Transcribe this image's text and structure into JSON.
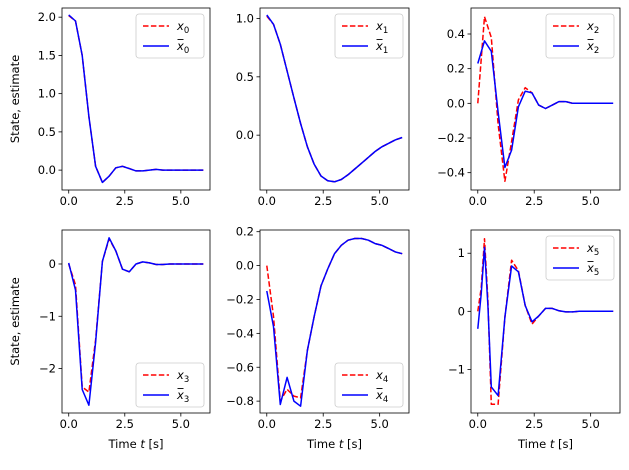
{
  "chart_data": [
    {
      "type": "line",
      "ylabel": "State, estimate",
      "xlabel": "",
      "xlim": [
        -0.3,
        6.3
      ],
      "ylim": [
        -0.26,
        2.12
      ],
      "xticks": [
        "0.0",
        "2.5",
        "5.0"
      ],
      "xtick_values": [
        0,
        2.5,
        5.0
      ],
      "yticks": [
        "0.0",
        "0.5",
        "1.0",
        "1.5",
        "2.0"
      ],
      "ytick_values": [
        0,
        0.5,
        1.0,
        1.5,
        2.0
      ],
      "legend_placement": "top-right",
      "grid": false,
      "series": [
        {
          "name": "x_0",
          "sub": "0",
          "bar": false,
          "style": "dashed",
          "color": "#ff0000",
          "x": [
            0,
            0.3,
            0.6,
            0.9,
            1.2,
            1.5,
            1.8,
            2.1,
            2.4,
            2.7,
            3.0,
            3.3,
            3.6,
            3.9,
            4.2,
            4.5,
            4.8,
            5.1,
            5.4,
            5.7,
            6.0
          ],
          "y": [
            2.02,
            1.95,
            1.5,
            0.7,
            0.05,
            -0.16,
            -0.08,
            0.03,
            0.05,
            0.02,
            -0.01,
            -0.01,
            0.0,
            0.01,
            0.0,
            0.0,
            0.0,
            0.0,
            0.0,
            0.0,
            0.0
          ]
        },
        {
          "name": "x̄_0",
          "sub": "0",
          "bar": true,
          "style": "solid",
          "color": "#0000ff",
          "x": [
            0,
            0.3,
            0.6,
            0.9,
            1.2,
            1.5,
            1.8,
            2.1,
            2.4,
            2.7,
            3.0,
            3.3,
            3.6,
            3.9,
            4.2,
            4.5,
            4.8,
            5.1,
            5.4,
            5.7,
            6.0
          ],
          "y": [
            2.03,
            1.95,
            1.5,
            0.7,
            0.05,
            -0.16,
            -0.08,
            0.03,
            0.05,
            0.02,
            -0.01,
            -0.01,
            0.0,
            0.01,
            0.0,
            0.0,
            0.0,
            0.0,
            0.0,
            0.0,
            0.0
          ]
        }
      ]
    },
    {
      "type": "line",
      "ylabel": "",
      "xlabel": "",
      "xlim": [
        -0.3,
        6.3
      ],
      "ylim": [
        -0.47,
        1.09
      ],
      "xticks": [
        "0.0",
        "2.5",
        "5.0"
      ],
      "xtick_values": [
        0,
        2.5,
        5.0
      ],
      "yticks": [
        "0.0",
        "0.5",
        "1.0"
      ],
      "ytick_values": [
        0,
        0.5,
        1.0
      ],
      "legend_placement": "top-right",
      "grid": false,
      "series": [
        {
          "name": "x_1",
          "sub": "1",
          "bar": false,
          "style": "dashed",
          "color": "#ff0000",
          "x": [
            0,
            0.3,
            0.6,
            0.9,
            1.2,
            1.5,
            1.8,
            2.1,
            2.4,
            2.7,
            3.0,
            3.3,
            3.6,
            3.9,
            4.2,
            4.5,
            4.8,
            5.1,
            5.4,
            5.7,
            6.0
          ],
          "y": [
            1.02,
            0.95,
            0.78,
            0.55,
            0.32,
            0.1,
            -0.1,
            -0.25,
            -0.35,
            -0.39,
            -0.4,
            -0.38,
            -0.34,
            -0.29,
            -0.24,
            -0.19,
            -0.14,
            -0.1,
            -0.07,
            -0.04,
            -0.02
          ]
        },
        {
          "name": "x̄_1",
          "sub": "1",
          "bar": true,
          "style": "solid",
          "color": "#0000ff",
          "x": [
            0,
            0.3,
            0.6,
            0.9,
            1.2,
            1.5,
            1.8,
            2.1,
            2.4,
            2.7,
            3.0,
            3.3,
            3.6,
            3.9,
            4.2,
            4.5,
            4.8,
            5.1,
            5.4,
            5.7,
            6.0
          ],
          "y": [
            1.03,
            0.95,
            0.78,
            0.55,
            0.32,
            0.1,
            -0.1,
            -0.25,
            -0.35,
            -0.39,
            -0.4,
            -0.38,
            -0.34,
            -0.29,
            -0.24,
            -0.19,
            -0.14,
            -0.1,
            -0.07,
            -0.04,
            -0.02
          ]
        }
      ]
    },
    {
      "type": "line",
      "ylabel": "",
      "xlabel": "",
      "xlim": [
        -0.3,
        6.3
      ],
      "ylim": [
        -0.5,
        0.55
      ],
      "xticks": [
        "0.0",
        "2.5",
        "5.0"
      ],
      "xtick_values": [
        0,
        2.5,
        5.0
      ],
      "yticks": [
        "−0.4",
        "−0.2",
        "0.0",
        "0.2",
        "0.4"
      ],
      "ytick_values": [
        -0.4,
        -0.2,
        0,
        0.2,
        0.4
      ],
      "legend_placement": "top-right",
      "grid": false,
      "series": [
        {
          "name": "x_2",
          "sub": "2",
          "bar": false,
          "style": "dashed",
          "color": "#ff0000",
          "x": [
            0,
            0.3,
            0.6,
            0.9,
            1.2,
            1.5,
            1.8,
            2.1,
            2.4,
            2.7,
            3.0,
            3.3,
            3.6,
            3.9,
            4.2,
            4.5,
            4.8,
            5.1,
            5.4,
            5.7,
            6.0
          ],
          "y": [
            0.0,
            0.5,
            0.38,
            -0.12,
            -0.45,
            -0.22,
            0.02,
            0.09,
            0.06,
            -0.01,
            -0.03,
            -0.01,
            0.01,
            0.01,
            0.0,
            0.0,
            0.0,
            0.0,
            0.0,
            0.0,
            0.0
          ]
        },
        {
          "name": "x̄_2",
          "sub": "2",
          "bar": true,
          "style": "solid",
          "color": "#0000ff",
          "x": [
            0,
            0.3,
            0.6,
            0.9,
            1.2,
            1.5,
            1.8,
            2.1,
            2.4,
            2.7,
            3.0,
            3.3,
            3.6,
            3.9,
            4.2,
            4.5,
            4.8,
            5.1,
            5.4,
            5.7,
            6.0
          ],
          "y": [
            0.23,
            0.36,
            0.3,
            -0.05,
            -0.37,
            -0.27,
            -0.02,
            0.07,
            0.06,
            -0.01,
            -0.03,
            -0.01,
            0.01,
            0.01,
            0.0,
            0.0,
            0.0,
            0.0,
            0.0,
            0.0,
            0.0
          ]
        }
      ]
    },
    {
      "type": "line",
      "ylabel": "State, estimate",
      "xlabel": "Time t [s]",
      "xlim": [
        -0.3,
        6.3
      ],
      "ylim": [
        -2.85,
        0.65
      ],
      "xticks": [
        "0.0",
        "2.5",
        "5.0"
      ],
      "xtick_values": [
        0,
        2.5,
        5.0
      ],
      "yticks": [
        "−2",
        "−1",
        "0"
      ],
      "ytick_values": [
        -2,
        -1,
        0
      ],
      "legend_placement": "bottom-right",
      "grid": false,
      "series": [
        {
          "name": "x_3",
          "sub": "3",
          "bar": false,
          "style": "dashed",
          "color": "#ff0000",
          "x": [
            0,
            0.3,
            0.6,
            0.9,
            1.2,
            1.5,
            1.8,
            2.1,
            2.4,
            2.7,
            3.0,
            3.3,
            3.6,
            3.9,
            4.2,
            4.5,
            4.8,
            5.1,
            5.4,
            5.7,
            6.0
          ],
          "y": [
            0.0,
            -0.4,
            -2.35,
            -2.45,
            -1.45,
            0.05,
            0.48,
            0.25,
            -0.1,
            -0.15,
            0.0,
            0.04,
            0.02,
            -0.01,
            -0.01,
            0.0,
            0.0,
            0.0,
            0.0,
            0.0,
            0.0
          ]
        },
        {
          "name": "x̄_3",
          "sub": "3",
          "bar": true,
          "style": "solid",
          "color": "#0000ff",
          "x": [
            0,
            0.3,
            0.6,
            0.9,
            1.2,
            1.5,
            1.8,
            2.1,
            2.4,
            2.7,
            3.0,
            3.3,
            3.6,
            3.9,
            4.2,
            4.5,
            4.8,
            5.1,
            5.4,
            5.7,
            6.0
          ],
          "y": [
            0.02,
            -0.5,
            -2.4,
            -2.7,
            -1.5,
            0.05,
            0.5,
            0.25,
            -0.1,
            -0.15,
            0.0,
            0.04,
            0.02,
            -0.01,
            -0.01,
            0.0,
            0.0,
            0.0,
            0.0,
            0.0,
            0.0
          ]
        }
      ]
    },
    {
      "type": "line",
      "ylabel": "",
      "xlabel": "Time t [s]",
      "xlim": [
        -0.3,
        6.3
      ],
      "ylim": [
        -0.87,
        0.21
      ],
      "xticks": [
        "0.0",
        "2.5",
        "5.0"
      ],
      "xtick_values": [
        0,
        2.5,
        5.0
      ],
      "yticks": [
        "−0.8",
        "−0.6",
        "−0.4",
        "−0.2",
        "0.0",
        "0.2"
      ],
      "ytick_values": [
        -0.8,
        -0.6,
        -0.4,
        -0.2,
        0,
        0.2
      ],
      "legend_placement": "bottom-right",
      "grid": false,
      "series": [
        {
          "name": "x_4",
          "sub": "4",
          "bar": false,
          "style": "dashed",
          "color": "#ff0000",
          "x": [
            0,
            0.3,
            0.6,
            0.9,
            1.2,
            1.5,
            1.8,
            2.1,
            2.4,
            2.7,
            3.0,
            3.3,
            3.6,
            3.9,
            4.2,
            4.5,
            4.8,
            5.1,
            5.4,
            5.7,
            6.0
          ],
          "y": [
            0.0,
            -0.3,
            -0.8,
            -0.73,
            -0.77,
            -0.78,
            -0.5,
            -0.3,
            -0.12,
            -0.02,
            0.07,
            0.12,
            0.15,
            0.16,
            0.16,
            0.15,
            0.13,
            0.12,
            0.1,
            0.08,
            0.07
          ]
        },
        {
          "name": "x̄_4",
          "sub": "4",
          "bar": true,
          "style": "solid",
          "color": "#0000ff",
          "x": [
            0,
            0.3,
            0.6,
            0.9,
            1.2,
            1.5,
            1.8,
            2.1,
            2.4,
            2.7,
            3.0,
            3.3,
            3.6,
            3.9,
            4.2,
            4.5,
            4.8,
            5.1,
            5.4,
            5.7,
            6.0
          ],
          "y": [
            -0.15,
            -0.36,
            -0.82,
            -0.66,
            -0.8,
            -0.83,
            -0.5,
            -0.3,
            -0.12,
            -0.02,
            0.07,
            0.12,
            0.15,
            0.16,
            0.16,
            0.15,
            0.13,
            0.12,
            0.1,
            0.08,
            0.07
          ]
        }
      ]
    },
    {
      "type": "line",
      "ylabel": "",
      "xlabel": "Time t [s]",
      "xlim": [
        -0.3,
        6.3
      ],
      "ylim": [
        -1.75,
        1.4
      ],
      "xticks": [
        "0.0",
        "2.5",
        "5.0"
      ],
      "xtick_values": [
        0,
        2.5,
        5.0
      ],
      "yticks": [
        "−1",
        "0",
        "1"
      ],
      "ytick_values": [
        -1,
        0,
        1
      ],
      "legend_placement": "top-right",
      "grid": false,
      "series": [
        {
          "name": "x_5",
          "sub": "5",
          "bar": false,
          "style": "dashed",
          "color": "#ff0000",
          "x": [
            0,
            0.15,
            0.3,
            0.45,
            0.6,
            0.9,
            1.2,
            1.5,
            1.8,
            2.1,
            2.4,
            2.7,
            3.0,
            3.3,
            3.6,
            3.9,
            4.2,
            4.5,
            4.8,
            5.1,
            5.4,
            5.7,
            6.0
          ],
          "y": [
            0.0,
            0.4,
            1.25,
            0.2,
            -1.6,
            -1.6,
            -0.1,
            0.88,
            0.7,
            0.1,
            -0.22,
            -0.08,
            0.05,
            0.05,
            0.01,
            -0.01,
            -0.01,
            0.0,
            0.0,
            0.0,
            0.0,
            0.0,
            0.0
          ]
        },
        {
          "name": "x̄_5",
          "sub": "5",
          "bar": true,
          "style": "solid",
          "color": "#0000ff",
          "x": [
            0,
            0.15,
            0.3,
            0.45,
            0.6,
            0.9,
            1.2,
            1.5,
            1.8,
            2.1,
            2.4,
            2.7,
            3.0,
            3.3,
            3.6,
            3.9,
            4.2,
            4.5,
            4.8,
            5.1,
            5.4,
            5.7,
            6.0
          ],
          "y": [
            -0.3,
            0.3,
            1.1,
            0.1,
            -1.3,
            -1.45,
            -0.1,
            0.78,
            0.68,
            0.1,
            -0.18,
            -0.08,
            0.05,
            0.05,
            0.01,
            -0.01,
            -0.01,
            0.0,
            0.0,
            0.0,
            0.0,
            0.0,
            0.0
          ]
        }
      ]
    }
  ]
}
